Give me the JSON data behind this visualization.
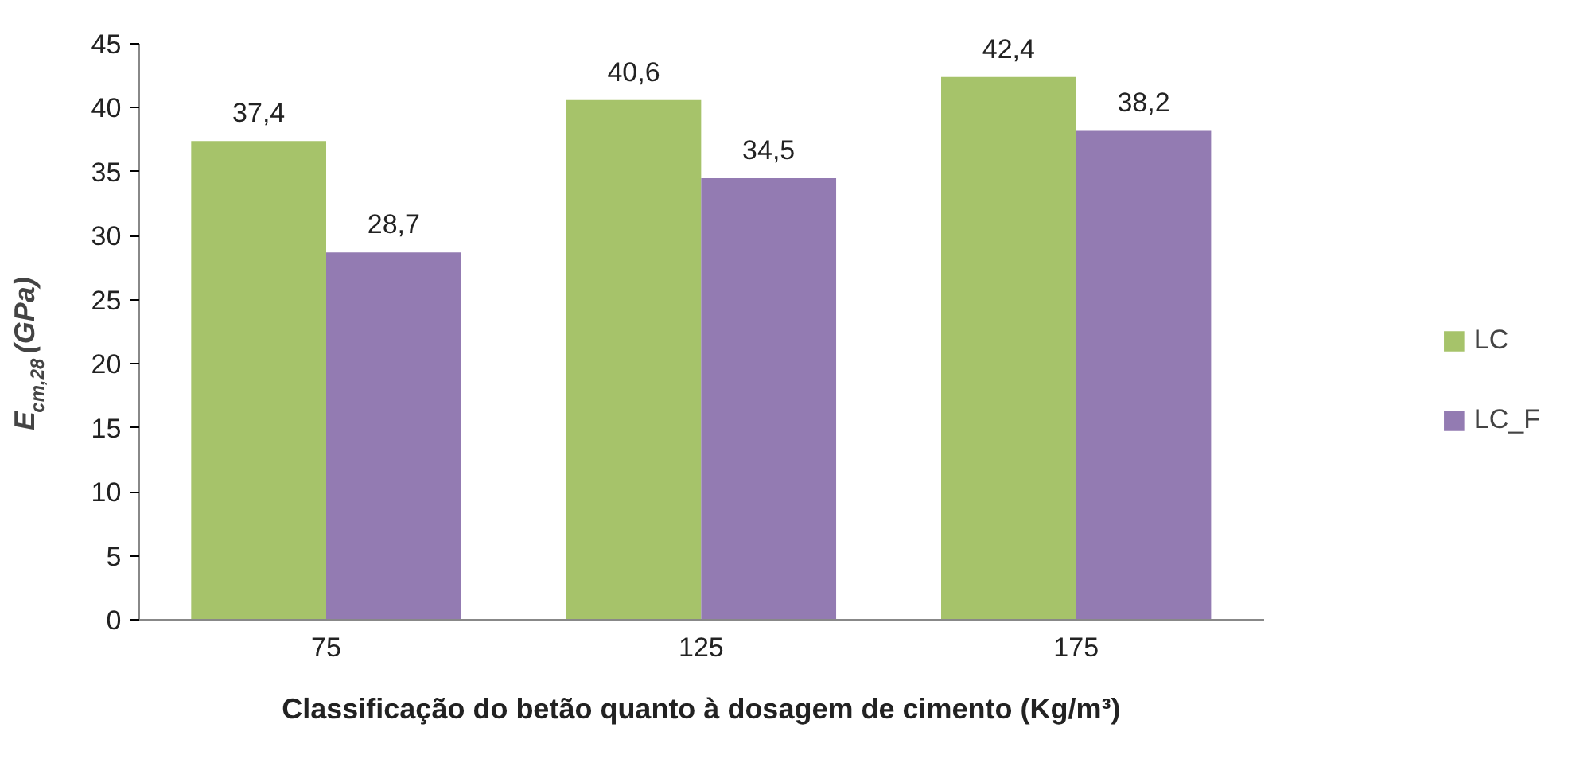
{
  "chart_data": {
    "type": "bar",
    "xlabel": "Classificação do betão quanto à dosagem de cimento (Kg/m³)",
    "ylabel": "E$_{cm,28}$ (GPa)",
    "categories": [
      "75",
      "125",
      "175"
    ],
    "series": [
      {
        "name": "LC",
        "color": "#a6c36a",
        "values": [
          37.4,
          40.6,
          42.4
        ],
        "value_labels": [
          "37,4",
          "40,6",
          "42,4"
        ]
      },
      {
        "name": "LC_F",
        "color": "#937bb2",
        "values": [
          28.7,
          34.5,
          38.2
        ],
        "value_labels": [
          "28,7",
          "34,5",
          "38,2"
        ]
      }
    ],
    "ylim": [
      0,
      45
    ],
    "yticks": [
      0,
      5,
      10,
      15,
      20,
      25,
      30,
      35,
      40,
      45
    ],
    "grid": false,
    "legend": "right"
  }
}
